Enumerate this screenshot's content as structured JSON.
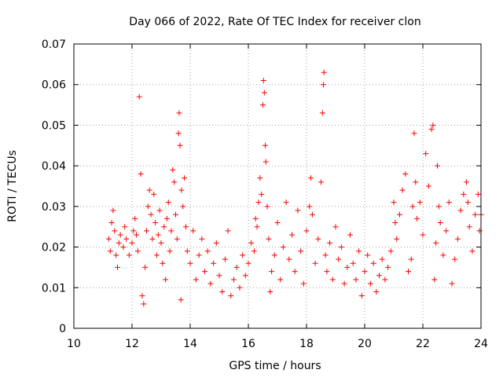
{
  "chart_data": {
    "type": "scatter",
    "title": "Day 066 of 2022, Rate Of TEC Index for receiver clon",
    "xlabel": "GPS time / hours",
    "ylabel": "ROTI / TECUs",
    "xlim": [
      10,
      24
    ],
    "ylim": [
      0,
      0.07
    ],
    "xticks": [
      "10",
      "12",
      "14",
      "16",
      "18",
      "20",
      "22",
      "24"
    ],
    "yticks": [
      "0",
      "0.01",
      "0.02",
      "0.03",
      "0.04",
      "0.05",
      "0.06",
      "0.07"
    ],
    "grid": true,
    "marker": "+",
    "marker_color": "#ff0000",
    "series": [
      {
        "points": [
          [
            11.2,
            0.022
          ],
          [
            11.25,
            0.019
          ],
          [
            11.3,
            0.026
          ],
          [
            11.35,
            0.029
          ],
          [
            11.4,
            0.024
          ],
          [
            11.45,
            0.018
          ],
          [
            11.5,
            0.015
          ],
          [
            11.55,
            0.021
          ],
          [
            11.6,
            0.023
          ],
          [
            11.7,
            0.02
          ],
          [
            11.75,
            0.025
          ],
          [
            11.8,
            0.022
          ],
          [
            11.9,
            0.018
          ],
          [
            12.0,
            0.021
          ],
          [
            12.05,
            0.024
          ],
          [
            12.1,
            0.027
          ],
          [
            12.15,
            0.023
          ],
          [
            12.2,
            0.019
          ],
          [
            12.25,
            0.057
          ],
          [
            12.3,
            0.038
          ],
          [
            12.35,
            0.008
          ],
          [
            12.4,
            0.006
          ],
          [
            12.45,
            0.015
          ],
          [
            12.5,
            0.024
          ],
          [
            12.55,
            0.03
          ],
          [
            12.6,
            0.034
          ],
          [
            12.65,
            0.028
          ],
          [
            12.7,
            0.022
          ],
          [
            12.75,
            0.033
          ],
          [
            12.8,
            0.026
          ],
          [
            12.85,
            0.018
          ],
          [
            12.9,
            0.023
          ],
          [
            12.95,
            0.029
          ],
          [
            13.0,
            0.021
          ],
          [
            13.05,
            0.016
          ],
          [
            13.1,
            0.025
          ],
          [
            13.15,
            0.012
          ],
          [
            13.2,
            0.027
          ],
          [
            13.25,
            0.031
          ],
          [
            13.3,
            0.019
          ],
          [
            13.35,
            0.024
          ],
          [
            13.4,
            0.039
          ],
          [
            13.45,
            0.036
          ],
          [
            13.5,
            0.028
          ],
          [
            13.55,
            0.022
          ],
          [
            13.6,
            0.048
          ],
          [
            13.62,
            0.053
          ],
          [
            13.65,
            0.045
          ],
          [
            13.68,
            0.007
          ],
          [
            13.7,
            0.034
          ],
          [
            13.75,
            0.03
          ],
          [
            13.8,
            0.037
          ],
          [
            13.85,
            0.025
          ],
          [
            13.9,
            0.019
          ],
          [
            14.0,
            0.016
          ],
          [
            14.1,
            0.024
          ],
          [
            14.2,
            0.012
          ],
          [
            14.3,
            0.018
          ],
          [
            14.4,
            0.022
          ],
          [
            14.5,
            0.014
          ],
          [
            14.6,
            0.019
          ],
          [
            14.7,
            0.011
          ],
          [
            14.8,
            0.016
          ],
          [
            14.9,
            0.021
          ],
          [
            15.0,
            0.013
          ],
          [
            15.1,
            0.009
          ],
          [
            15.2,
            0.017
          ],
          [
            15.3,
            0.024
          ],
          [
            15.4,
            0.008
          ],
          [
            15.5,
            0.012
          ],
          [
            15.6,
            0.015
          ],
          [
            15.7,
            0.01
          ],
          [
            15.8,
            0.018
          ],
          [
            15.9,
            0.013
          ],
          [
            16.0,
            0.016
          ],
          [
            16.1,
            0.021
          ],
          [
            16.2,
            0.019
          ],
          [
            16.25,
            0.027
          ],
          [
            16.3,
            0.025
          ],
          [
            16.35,
            0.031
          ],
          [
            16.4,
            0.037
          ],
          [
            16.45,
            0.033
          ],
          [
            16.5,
            0.055
          ],
          [
            16.52,
            0.061
          ],
          [
            16.55,
            0.058
          ],
          [
            16.58,
            0.045
          ],
          [
            16.6,
            0.041
          ],
          [
            16.65,
            0.03
          ],
          [
            16.7,
            0.022
          ],
          [
            16.75,
            0.009
          ],
          [
            16.8,
            0.014
          ],
          [
            16.9,
            0.018
          ],
          [
            17.0,
            0.026
          ],
          [
            17.1,
            0.012
          ],
          [
            17.2,
            0.02
          ],
          [
            17.3,
            0.031
          ],
          [
            17.4,
            0.017
          ],
          [
            17.5,
            0.023
          ],
          [
            17.6,
            0.014
          ],
          [
            17.7,
            0.029
          ],
          [
            17.8,
            0.019
          ],
          [
            17.9,
            0.011
          ],
          [
            18.0,
            0.024
          ],
          [
            18.1,
            0.03
          ],
          [
            18.15,
            0.037
          ],
          [
            18.2,
            0.028
          ],
          [
            18.3,
            0.016
          ],
          [
            18.4,
            0.022
          ],
          [
            18.5,
            0.036
          ],
          [
            18.55,
            0.053
          ],
          [
            18.58,
            0.06
          ],
          [
            18.6,
            0.063
          ],
          [
            18.65,
            0.018
          ],
          [
            18.7,
            0.014
          ],
          [
            18.8,
            0.021
          ],
          [
            18.9,
            0.012
          ],
          [
            19.0,
            0.025
          ],
          [
            19.1,
            0.017
          ],
          [
            19.2,
            0.02
          ],
          [
            19.3,
            0.011
          ],
          [
            19.4,
            0.015
          ],
          [
            19.5,
            0.023
          ],
          [
            19.6,
            0.016
          ],
          [
            19.7,
            0.012
          ],
          [
            19.8,
            0.019
          ],
          [
            19.9,
            0.008
          ],
          [
            20.0,
            0.014
          ],
          [
            20.1,
            0.018
          ],
          [
            20.2,
            0.011
          ],
          [
            20.3,
            0.016
          ],
          [
            20.4,
            0.009
          ],
          [
            20.5,
            0.013
          ],
          [
            20.6,
            0.017
          ],
          [
            20.7,
            0.012
          ],
          [
            20.8,
            0.015
          ],
          [
            20.9,
            0.019
          ],
          [
            21.0,
            0.031
          ],
          [
            21.05,
            0.026
          ],
          [
            21.1,
            0.022
          ],
          [
            21.2,
            0.028
          ],
          [
            21.3,
            0.034
          ],
          [
            21.4,
            0.038
          ],
          [
            21.5,
            0.014
          ],
          [
            21.6,
            0.017
          ],
          [
            21.65,
            0.03
          ],
          [
            21.7,
            0.048
          ],
          [
            21.75,
            0.036
          ],
          [
            21.8,
            0.027
          ],
          [
            21.9,
            0.031
          ],
          [
            22.0,
            0.023
          ],
          [
            22.1,
            0.043
          ],
          [
            22.2,
            0.035
          ],
          [
            22.3,
            0.049
          ],
          [
            22.35,
            0.05
          ],
          [
            22.4,
            0.012
          ],
          [
            22.45,
            0.021
          ],
          [
            22.5,
            0.04
          ],
          [
            22.55,
            0.03
          ],
          [
            22.6,
            0.026
          ],
          [
            22.7,
            0.018
          ],
          [
            22.8,
            0.024
          ],
          [
            22.9,
            0.031
          ],
          [
            23.0,
            0.011
          ],
          [
            23.1,
            0.017
          ],
          [
            23.2,
            0.022
          ],
          [
            23.3,
            0.029
          ],
          [
            23.4,
            0.033
          ],
          [
            23.5,
            0.036
          ],
          [
            23.55,
            0.031
          ],
          [
            23.6,
            0.025
          ],
          [
            23.7,
            0.019
          ],
          [
            23.8,
            0.028
          ],
          [
            23.9,
            0.033
          ],
          [
            23.95,
            0.024
          ],
          [
            24.0,
            0.028
          ]
        ]
      }
    ]
  }
}
